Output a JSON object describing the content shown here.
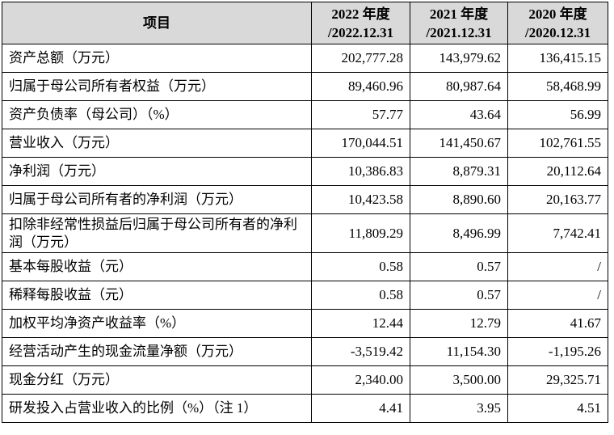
{
  "table": {
    "header": [
      [
        "项目"
      ],
      [
        "2022 年度",
        "/2022.12.31"
      ],
      [
        "2021 年度",
        "/2021.12.31"
      ],
      [
        "2020 年度",
        "/2020.12.31"
      ]
    ],
    "rows": [
      [
        "资产总额（万元）",
        "202,777.28",
        "143,979.62",
        "136,415.15"
      ],
      [
        "归属于母公司所有者权益（万元）",
        "89,460.96",
        "80,987.64",
        "58,468.99"
      ],
      [
        "资产负债率（母公司）（%）",
        "57.77",
        "43.64",
        "56.99"
      ],
      [
        "营业收入（万元）",
        "170,044.51",
        "141,450.67",
        "102,761.55"
      ],
      [
        "净利润（万元）",
        "10,386.83",
        "8,879.31",
        "20,112.64"
      ],
      [
        "归属于母公司所有者的净利润（万元）",
        "10,423.58",
        "8,890.60",
        "20,163.77"
      ],
      [
        "扣除非经常性损益后归属于母公司所有者的净利润（万元）",
        "11,809.29",
        "8,496.99",
        "7,742.41"
      ],
      [
        "基本每股收益（元）",
        "0.58",
        "0.57",
        "/"
      ],
      [
        "稀释每股收益（元）",
        "0.58",
        "0.57",
        "/"
      ],
      [
        "加权平均净资产收益率（%）",
        "12.44",
        "12.79",
        "41.67"
      ],
      [
        "经营活动产生的现金流量净额（万元）",
        "-3,519.42",
        "11,154.30",
        "-1,195.26"
      ],
      [
        "现金分红（万元）",
        "2,340.00",
        "3,500.00",
        "29,325.71"
      ],
      [
        "研发投入占营业收入的比例（%）（注 1）",
        "4.41",
        "3.95",
        "4.51"
      ]
    ]
  }
}
